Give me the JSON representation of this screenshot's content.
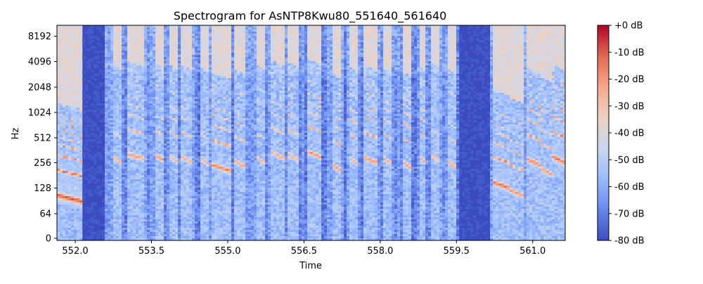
{
  "chart_data": {
    "type": "heatmap",
    "title": "Spectrogram for AsNTP8Kwu80_551640_561640",
    "xlabel": "Time",
    "ylabel": "Hz",
    "x_ticks": [
      "552.0",
      "553.5",
      "555.0",
      "556.5",
      "558.0",
      "559.5",
      "561.0"
    ],
    "x_tick_values": [
      552.0,
      553.5,
      555.0,
      556.5,
      558.0,
      559.5,
      561.0
    ],
    "xlim": [
      551.64,
      561.64
    ],
    "y_ticks": [
      "0",
      "64",
      "128",
      "256",
      "512",
      "1024",
      "2048",
      "4096",
      "8192"
    ],
    "y_tick_values": [
      0,
      64,
      128,
      256,
      512,
      1024,
      2048,
      4096,
      8192
    ],
    "y_scale": "symlog base 2",
    "colorbar": {
      "ticks": [
        "+0 dB",
        "-10 dB",
        "-20 dB",
        "-30 dB",
        "-40 dB",
        "-50 dB",
        "-60 dB",
        "-70 dB",
        "-80 dB"
      ],
      "tick_values": [
        0,
        -10,
        -20,
        -30,
        -40,
        -50,
        -60,
        -70,
        -80
      ],
      "range": [
        -80,
        0
      ],
      "colormap": "coolwarm",
      "colors": [
        "#3b4cc0",
        "#6788ee",
        "#9abbff",
        "#c9d7f0",
        "#edd1c2",
        "#f7a889",
        "#e26952",
        "#b40426"
      ]
    },
    "silent_regions": [
      {
        "start": 552.15,
        "end": 552.58
      },
      {
        "start": 559.55,
        "end": 560.15
      }
    ],
    "voiced_segments": [
      {
        "start": 551.64,
        "end": 552.12,
        "f0": 105,
        "level": -8
      },
      {
        "start": 552.75,
        "end": 552.9,
        "f0": 300,
        "level": -22
      },
      {
        "start": 553.0,
        "end": 553.38,
        "f0": 330,
        "level": -20
      },
      {
        "start": 553.55,
        "end": 553.75,
        "f0": 320,
        "level": -18
      },
      {
        "start": 553.85,
        "end": 554.0,
        "f0": 310,
        "level": -25
      },
      {
        "start": 554.1,
        "end": 554.3,
        "f0": 300,
        "level": -22
      },
      {
        "start": 554.45,
        "end": 554.6,
        "f0": 290,
        "level": -24
      },
      {
        "start": 554.7,
        "end": 555.05,
        "f0": 240,
        "level": -15
      },
      {
        "start": 555.1,
        "end": 555.35,
        "f0": 270,
        "level": -20
      },
      {
        "start": 555.55,
        "end": 555.72,
        "f0": 300,
        "level": -25
      },
      {
        "start": 555.85,
        "end": 556.1,
        "f0": 340,
        "level": -22
      },
      {
        "start": 556.2,
        "end": 556.4,
        "f0": 320,
        "level": -22
      },
      {
        "start": 556.55,
        "end": 556.85,
        "f0": 350,
        "level": -18
      },
      {
        "start": 557.05,
        "end": 557.25,
        "f0": 240,
        "level": -20
      },
      {
        "start": 557.4,
        "end": 557.55,
        "f0": 290,
        "level": -24
      },
      {
        "start": 557.65,
        "end": 557.95,
        "f0": 300,
        "level": -18
      },
      {
        "start": 558.05,
        "end": 558.25,
        "f0": 290,
        "level": -22
      },
      {
        "start": 558.45,
        "end": 558.6,
        "f0": 260,
        "level": -20
      },
      {
        "start": 558.75,
        "end": 558.9,
        "f0": 300,
        "level": -22
      },
      {
        "start": 559.0,
        "end": 559.15,
        "f0": 320,
        "level": -25
      },
      {
        "start": 559.35,
        "end": 559.5,
        "f0": 260,
        "level": -20
      },
      {
        "start": 560.2,
        "end": 560.55,
        "f0": 150,
        "level": -12
      },
      {
        "start": 560.55,
        "end": 560.85,
        "f0": 120,
        "level": -18
      },
      {
        "start": 560.9,
        "end": 561.15,
        "f0": 280,
        "level": -15
      },
      {
        "start": 561.15,
        "end": 561.35,
        "f0": 220,
        "level": -18
      },
      {
        "start": 561.4,
        "end": 561.64,
        "f0": 300,
        "level": -12
      }
    ]
  }
}
